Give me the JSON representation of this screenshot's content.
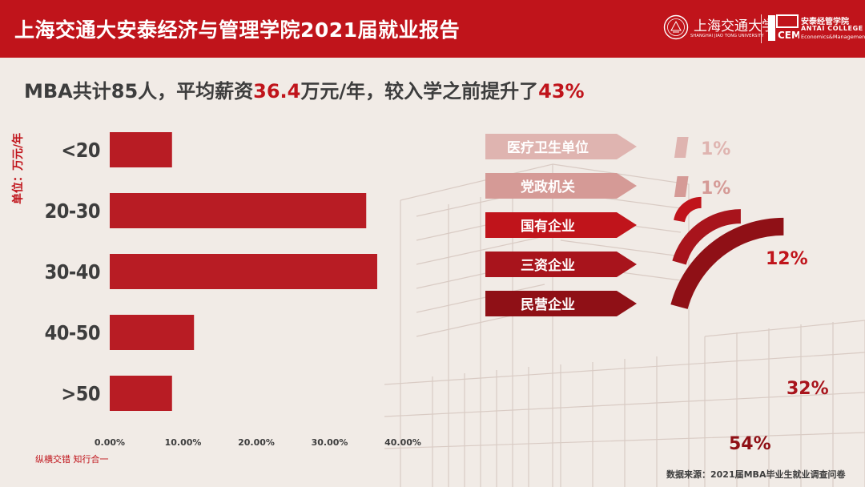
{
  "header": {
    "title": "上海交通大安泰经济与管理学院2021届就业报告",
    "logo_university_cn": "上海交通大学",
    "logo_university_en": "SHANGHAI JIAO TONG UNIVERSITY",
    "logo_college_cn": "安泰经管学院",
    "logo_college_en": "ANTAI COLLEGE",
    "logo_college_en2": "Economics&Management"
  },
  "headline": {
    "prefix": "MBA共计85人，平均薪资",
    "salary": "36.4",
    "middle": "万元/年，较入学之前提升了",
    "growth": "43%"
  },
  "chart_data": [
    {
      "type": "bar",
      "orientation": "horizontal",
      "ylabel": "单位：万元/年",
      "categories": [
        "<20",
        "20-30",
        "30-40",
        "40-50",
        ">50"
      ],
      "values": [
        8.5,
        35.0,
        36.5,
        11.5,
        8.5
      ],
      "xlim": [
        0,
        40
      ],
      "xticks": [
        "0.00%",
        "10.00%",
        "20.00%",
        "30.00%",
        "40.00%"
      ],
      "bar_color": "#b81c24",
      "grid": false
    },
    {
      "type": "bar",
      "style": "radial",
      "categories": [
        "医疗卫生单位",
        "党政机关",
        "国有企业",
        "三资企业",
        "民营企业"
      ],
      "values": [
        1,
        1,
        12,
        32,
        54
      ],
      "labels": [
        "1%",
        "1%",
        "12%",
        "32%",
        "54%"
      ],
      "colors": [
        "#dfb4b0",
        "#d59a96",
        "#c0141b",
        "#a8141c",
        "#8f1016"
      ]
    }
  ],
  "footer": {
    "tagline": "纵横交错 知行合一",
    "source": "数据来源：2021届MBA毕业生就业调查问卷"
  }
}
